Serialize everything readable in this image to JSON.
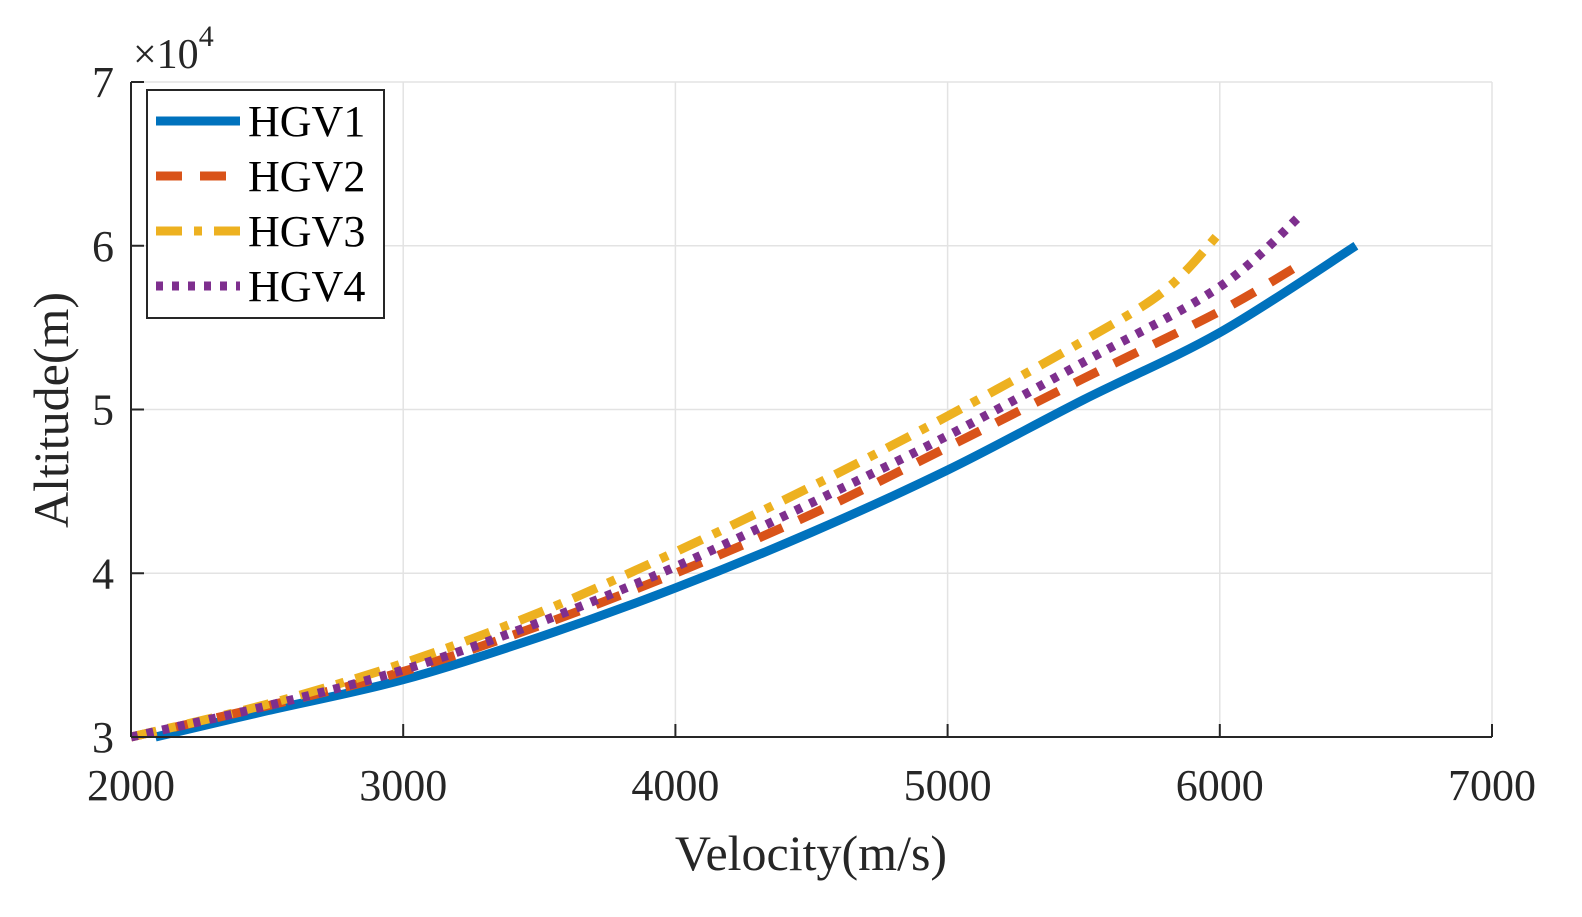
{
  "chart_data": {
    "type": "line",
    "title": "",
    "xlabel": "Velocity(m/s)",
    "ylabel": "Altitude(m)",
    "xlim": [
      2000,
      7000
    ],
    "ylim": [
      30000,
      70000
    ],
    "y_exponent_label": "×10",
    "y_exponent": "4",
    "xticks": [
      2000,
      3000,
      4000,
      5000,
      6000,
      7000
    ],
    "xtick_labels": [
      "2000",
      "3000",
      "4000",
      "5000",
      "6000",
      "7000"
    ],
    "yticks": [
      30000,
      40000,
      50000,
      60000,
      70000
    ],
    "ytick_labels": [
      "3",
      "4",
      "5",
      "6",
      "7"
    ],
    "grid": true,
    "legend_position": "top-left",
    "series": [
      {
        "name": "HGV1",
        "color": "#0072BD",
        "style": "solid",
        "x": [
          2090,
          2500,
          3000,
          3500,
          4000,
          4500,
          5000,
          5500,
          6000,
          6500
        ],
        "y": [
          30000,
          31600,
          33500,
          36100,
          39100,
          42500,
          46300,
          50600,
          54700,
          60000
        ]
      },
      {
        "name": "HGV2",
        "color": "#D95319",
        "style": "dashed",
        "x": [
          2000,
          2500,
          3000,
          3500,
          4000,
          4500,
          5000,
          5500,
          6000,
          6300
        ],
        "y": [
          30000,
          31900,
          34000,
          36800,
          40000,
          43600,
          47700,
          51900,
          56000,
          58900
        ]
      },
      {
        "name": "HGV3",
        "color": "#EDB120",
        "style": "dashdot",
        "x": [
          2000,
          2500,
          3000,
          3500,
          4000,
          4500,
          5000,
          5500,
          5800,
          6000
        ],
        "y": [
          30000,
          32000,
          34500,
          37600,
          41300,
          45300,
          49600,
          54200,
          57300,
          60800
        ]
      },
      {
        "name": "HGV4",
        "color": "#7E2F8E",
        "style": "dotted",
        "x": [
          2000,
          2500,
          3000,
          3500,
          4000,
          4500,
          5000,
          5500,
          6000,
          6300
        ],
        "y": [
          30000,
          31900,
          34100,
          37000,
          40400,
          44300,
          48400,
          52900,
          57500,
          61900
        ]
      }
    ]
  }
}
